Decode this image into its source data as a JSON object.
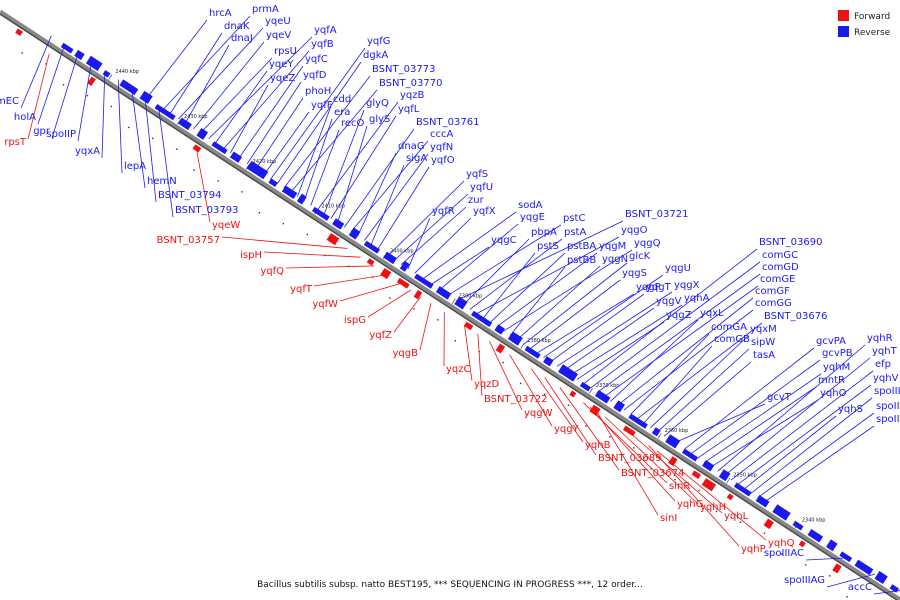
{
  "colors": {
    "forward": "#ee1111",
    "reverse": "#1a1aee",
    "axis": "#888888",
    "axis_dark": "#444444",
    "background": "#ffffff"
  },
  "legend": {
    "items": [
      {
        "label": "Forward",
        "color": "#ee1111"
      },
      {
        "label": "Reverse",
        "color": "#1a1aee"
      }
    ]
  },
  "caption": "Bacillus subtilis subsp. natto BEST195, *** SEQUENCING IN PROGRESS ***, 12 order...",
  "ticks": [
    "2440 kbp",
    "2430 kbp",
    "2420 kbp",
    "2410 kbp",
    "2400 kbp",
    "2390 kbp",
    "2380 kbp",
    "2370 kbp",
    "2360 kbp",
    "2350 kbp",
    "2340 kbp"
  ],
  "reverse_genes": [
    "hrcA",
    "prmA",
    "dnaK",
    "yqeU",
    "dnaJ",
    "yqeV",
    "rpsU",
    "yqfA",
    "yqeY",
    "yqfB",
    "yqeZ",
    "yqfC",
    "yqfD",
    "phoH",
    "yqfF",
    "yqfG",
    "dgkA",
    "BSNT_03773",
    "BSNT_03770",
    "cdd",
    "era",
    "recO",
    "yqzB",
    "glyQ",
    "yqfL",
    "glyS",
    "BSNT_03761",
    "cccA",
    "dnaG",
    "yqfN",
    "sigA",
    "yqfO",
    "yqfS",
    "yqfU",
    "zur",
    "yqfR",
    "yqfX",
    "sodA",
    "yqgC",
    "yqgE",
    "pstC",
    "BSNT_03721",
    "pbpA",
    "pstA",
    "yqgO",
    "pstS",
    "pstBA",
    "yqgM",
    "yqgQ",
    "pstBB",
    "yqgN",
    "glcK",
    "yqgS",
    "yqgP",
    "yqgU",
    "yqgT",
    "yqgX",
    "yqgV",
    "yqhA",
    "yqgZ",
    "BSNT_03690",
    "comGC",
    "comGD",
    "comGE",
    "yqxL",
    "comGF",
    "comGG",
    "comGA",
    "BSNT_03676",
    "comGB",
    "yqxM",
    "sipW",
    "tasA",
    "gcvT",
    "gcvPA",
    "gcvPB",
    "yqhM",
    "mntR",
    "yqhO",
    "yqhR",
    "yqhT",
    "efp",
    "yqhV",
    "yqhS",
    "spoIIIAA",
    "spoIIIAB",
    "spoIIIAD",
    "comEC",
    "holA",
    "gpr",
    "spoIIP",
    "yqxA",
    "lepA",
    "hemN",
    "BSNT_03794",
    "BSNT_03793",
    "spoIIIAC",
    "spoIIIAG",
    "accC"
  ],
  "forward_genes": [
    "rpsT",
    "yqeW",
    "BSNT_03757",
    "ispH",
    "yqfQ",
    "yqfT",
    "yqfW",
    "ispG",
    "yqfZ",
    "yqgB",
    "yqzC",
    "yqzD",
    "BSNT_03722",
    "yqgW",
    "yqgY",
    "yqhB",
    "BSNT_03689",
    "BSNT_03674",
    "sinR",
    "yqhG",
    "sinI",
    "yqhH",
    "yqhL",
    "yqhP",
    "yqhQ"
  ]
}
